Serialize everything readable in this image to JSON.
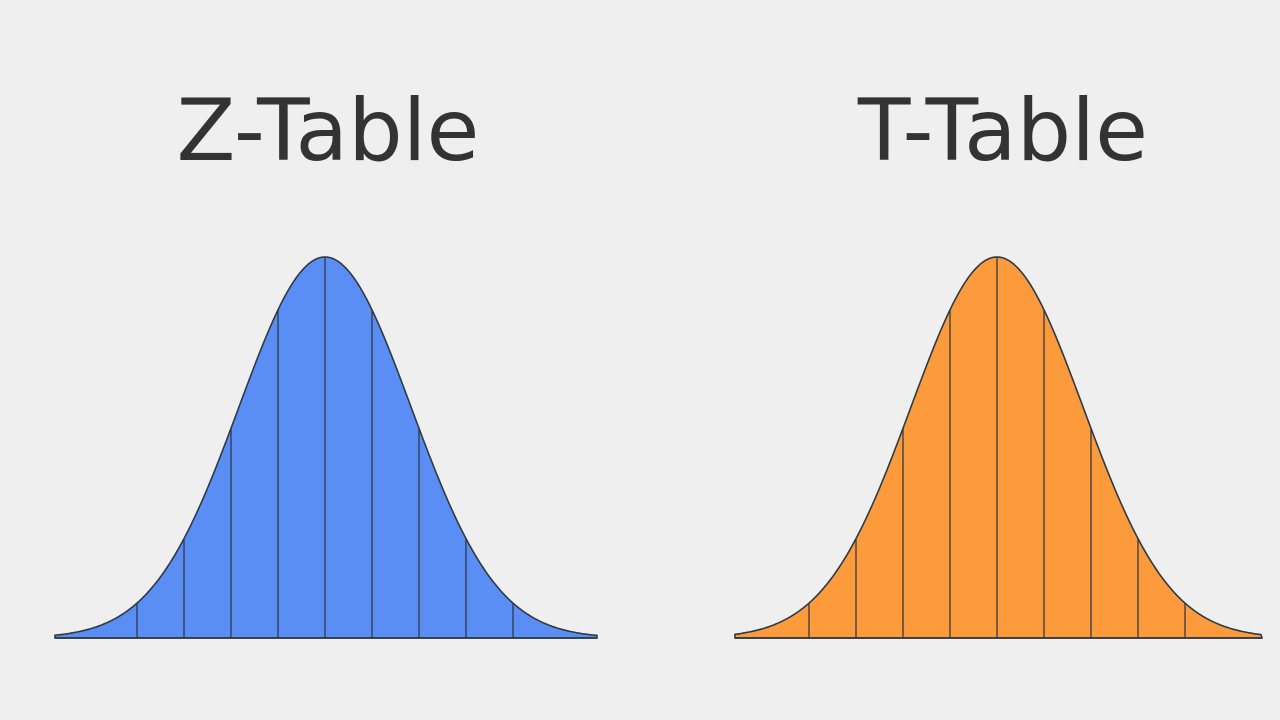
{
  "panels": [
    {
      "title": "Z-Table"
    },
    {
      "title": "T-Table"
    }
  ]
}
